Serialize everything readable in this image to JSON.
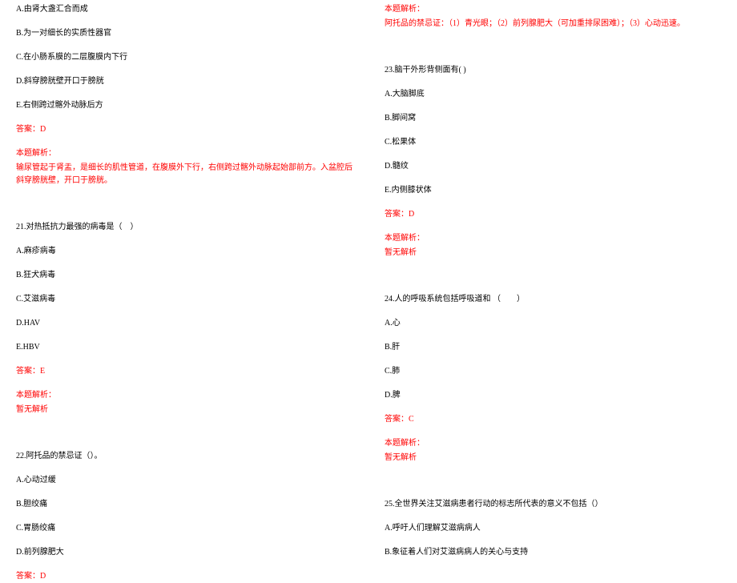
{
  "colors": {
    "text": "#000000",
    "answer": "#ff0000",
    "background": "#ffffff"
  },
  "typography": {
    "font_family": "SimSun",
    "font_size_pt": 10,
    "line_height": 1.6
  },
  "left": {
    "q20_options": {
      "A": "A.由肾大盏汇合而成",
      "B": "B.为一对细长的实质性器官",
      "C": "C.在小肠系膜的二层腹膜内下行",
      "D": "D.斜穿膀胱壁开口于膀胱",
      "E": "E.右侧跨过髂外动脉后方"
    },
    "q20_answer": "答案：D",
    "q20_analysis_label": "本题解析：",
    "q20_analysis_text": "输尿管起于肾盂，是细长的肌性管道，在腹膜外下行，右侧跨过髂外动脉起始部前方。入盆腔后斜穿膀胱壁，开口于膀胱。",
    "q21_stem": "21.对热抵抗力最强的病毒是（　）",
    "q21_options": {
      "A": "A.麻疹病毒",
      "B": "B.狂犬病毒",
      "C": "C.艾滋病毒",
      "D": "D.HAV",
      "E": "E.HBV"
    },
    "q21_answer": "答案：E",
    "q21_analysis_label": "本题解析：",
    "q21_analysis_text": "暂无解析",
    "q22_stem": "22.阿托品的禁忌证（）。",
    "q22_options": {
      "A": "A.心动过缓",
      "B": "B.胆绞痛",
      "C": "C.胃肠绞痛",
      "D": "D.前列腺肥大"
    },
    "q22_answer": "答案：D"
  },
  "right": {
    "q22_analysis_label": "本题解析：",
    "q22_analysis_text": "阿托品的禁忌证：（1）青光眼；（2）前列腺肥大（可加重排尿困难）；（3）心动迅速。",
    "q23_stem": "23.脑干外形背侧面有( )",
    "q23_options": {
      "A": "A.大脑脚底",
      "B": "B.脚间窝",
      "C": "C.松果体",
      "D": "D.髓纹",
      "E": "E.内侧膝状体"
    },
    "q23_answer": "答案：D",
    "q23_analysis_label": "本题解析：",
    "q23_analysis_text": "暂无解析",
    "q24_stem": "24.人的呼吸系统包括呼吸道和 （　　）",
    "q24_options": {
      "A": "A.心",
      "B": "B.肝",
      "C": "C.肺",
      "D": "D.脾"
    },
    "q24_answer": "答案：C",
    "q24_analysis_label": "本题解析：",
    "q24_analysis_text": "暂无解析",
    "q25_stem": "25.全世界关注艾滋病患者行动的标志所代表的意义不包括（）",
    "q25_options": {
      "A": "A.呼吁人们理解艾滋病病人",
      "B": "B.象征着人们对艾滋病病人的关心与支持"
    }
  }
}
